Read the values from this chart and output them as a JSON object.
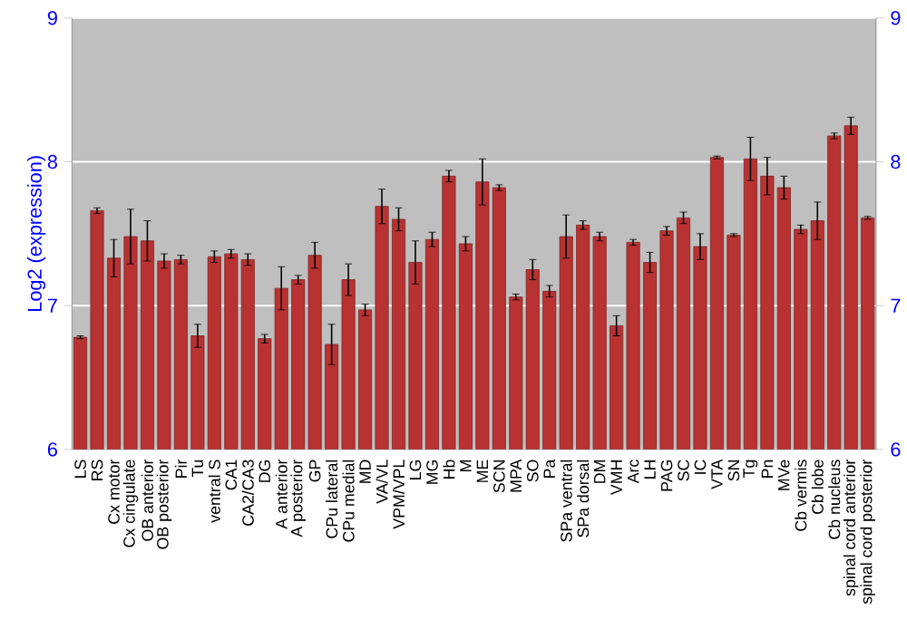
{
  "chart_data": {
    "type": "bar",
    "ylabel": "Log2 (expression)",
    "categories": [
      "LS",
      "RS",
      "Cx motor",
      "Cx cingulate",
      "OB anterior",
      "OB posterior",
      "Pir",
      "Tu",
      "ventral S",
      "CA1",
      "CA2/CA3",
      "DG",
      "A anterior",
      "A posterior",
      "GP",
      "CPu lateral",
      "CPu medial",
      "MD",
      "VA/VL",
      "VPM/VPL",
      "LG",
      "MG",
      "Hb",
      "M",
      "ME",
      "SCN",
      "MPA",
      "SO",
      "Pa",
      "SPa ventral",
      "SPa dorsal",
      "DM",
      "VMH",
      "Arc",
      "LH",
      "PAG",
      "SC",
      "IC",
      "VTA",
      "SN",
      "Tg",
      "Pn",
      "MVe",
      "Cb vermis",
      "Cb lobe",
      "Cb nucleus",
      "spinal cord anterior",
      "spinal cord posterior"
    ],
    "values": [
      6.78,
      7.66,
      7.33,
      7.48,
      7.45,
      7.31,
      7.32,
      6.79,
      7.34,
      7.36,
      7.32,
      6.77,
      7.12,
      7.18,
      7.35,
      6.73,
      7.18,
      6.97,
      7.69,
      7.6,
      7.3,
      7.46,
      7.9,
      7.43,
      7.86,
      7.82,
      7.06,
      7.25,
      7.1,
      7.48,
      7.56,
      7.48,
      6.86,
      7.44,
      7.3,
      7.52,
      7.61,
      7.41,
      8.03,
      7.49,
      8.02,
      7.9,
      7.82,
      7.53,
      7.59,
      8.18,
      8.25,
      7.61
    ],
    "errors": [
      0.01,
      0.02,
      0.13,
      0.19,
      0.14,
      0.05,
      0.03,
      0.08,
      0.04,
      0.03,
      0.04,
      0.03,
      0.15,
      0.03,
      0.09,
      0.14,
      0.11,
      0.04,
      0.12,
      0.08,
      0.15,
      0.05,
      0.04,
      0.05,
      0.16,
      0.02,
      0.02,
      0.07,
      0.04,
      0.15,
      0.03,
      0.03,
      0.07,
      0.02,
      0.07,
      0.03,
      0.04,
      0.09,
      0.01,
      0.01,
      0.15,
      0.13,
      0.08,
      0.03,
      0.13,
      0.02,
      0.06,
      0.01
    ],
    "color": "#b83232",
    "ylim": [
      6,
      9
    ],
    "yticks": [
      6,
      7,
      8,
      9
    ],
    "y2lim": [
      6,
      9
    ],
    "y2ticks": [
      6,
      7,
      8,
      9
    ],
    "grid": "y"
  }
}
